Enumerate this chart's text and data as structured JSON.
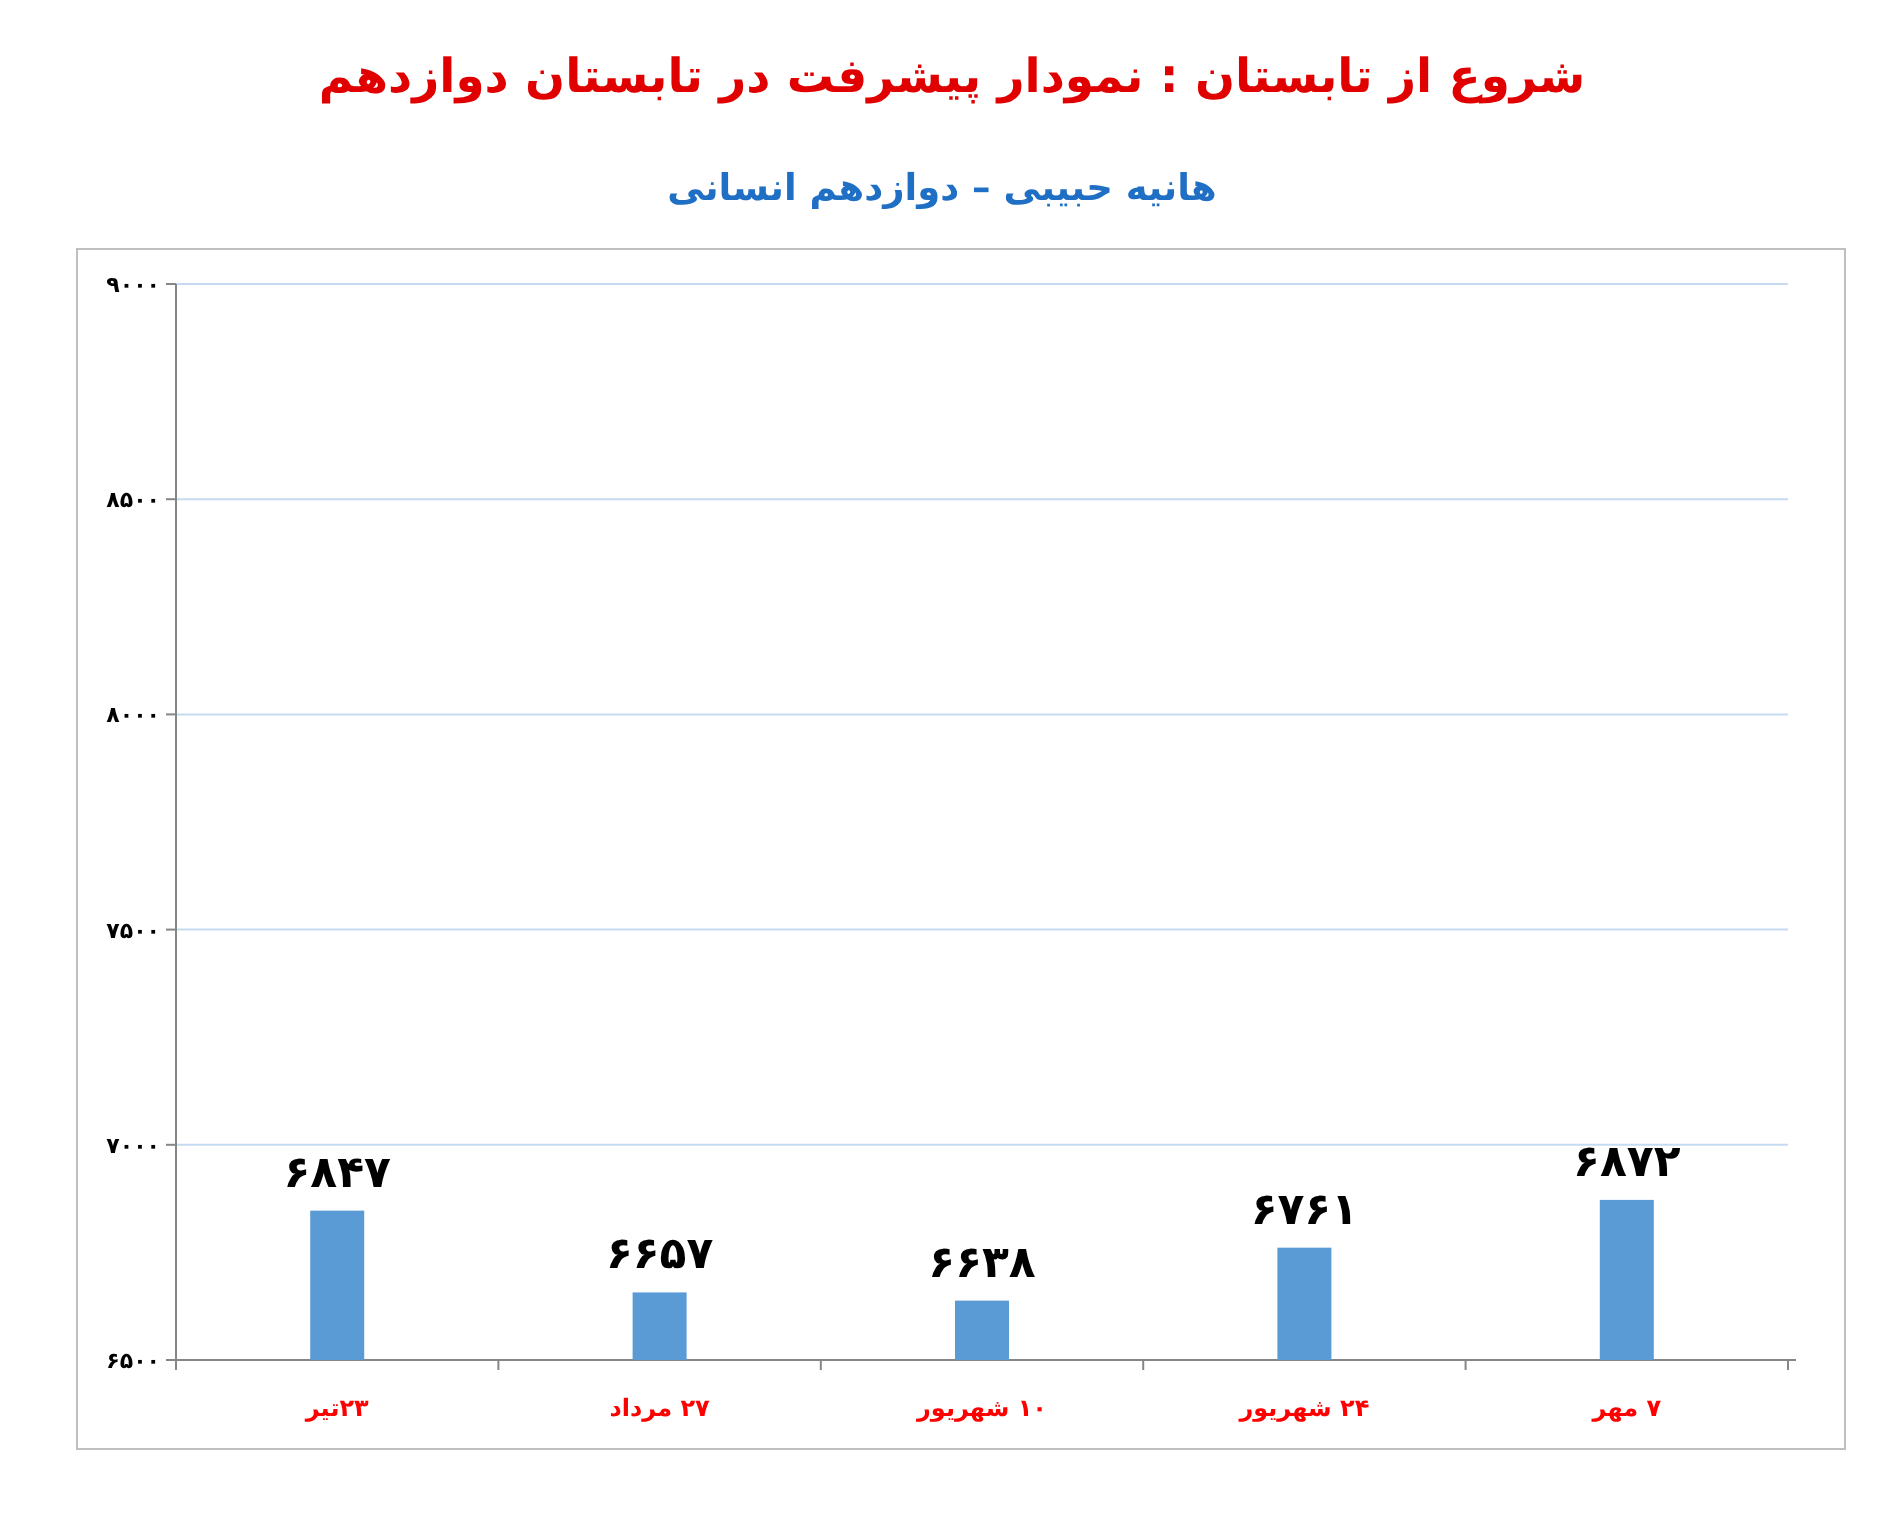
{
  "chart_data": {
    "type": "bar",
    "title": "شروع از تابستان : نمودار پیشرفت در تابستان دوازدهم",
    "subtitle": "هانیه حبیبی – دوازدهم انسانی",
    "categories": [
      "۲۳تیر",
      "۲۷ مرداد",
      "۱۰ شهریور",
      "۲۴ شهریور",
      "۷ مهر"
    ],
    "values": [
      6847,
      6657,
      6638,
      6761,
      6872
    ],
    "value_labels": [
      "۶۸۴۷",
      "۶۶۵۷",
      "۶۶۳۸",
      "۶۷۶۱",
      "۶۸۷۲"
    ],
    "color": "#5b9bd5",
    "ylim": [
      6500,
      9000
    ],
    "yticks": [
      {
        "value": 6500,
        "label": "۶۵۰۰"
      },
      {
        "value": 7000,
        "label": "۷۰۰۰"
      },
      {
        "value": 7500,
        "label": "۷۵۰۰"
      },
      {
        "value": 8000,
        "label": "۸۰۰۰"
      },
      {
        "value": 8500,
        "label": "۸۵۰۰"
      },
      {
        "value": 9000,
        "label": "۹۰۰۰"
      }
    ],
    "grid": "y"
  }
}
